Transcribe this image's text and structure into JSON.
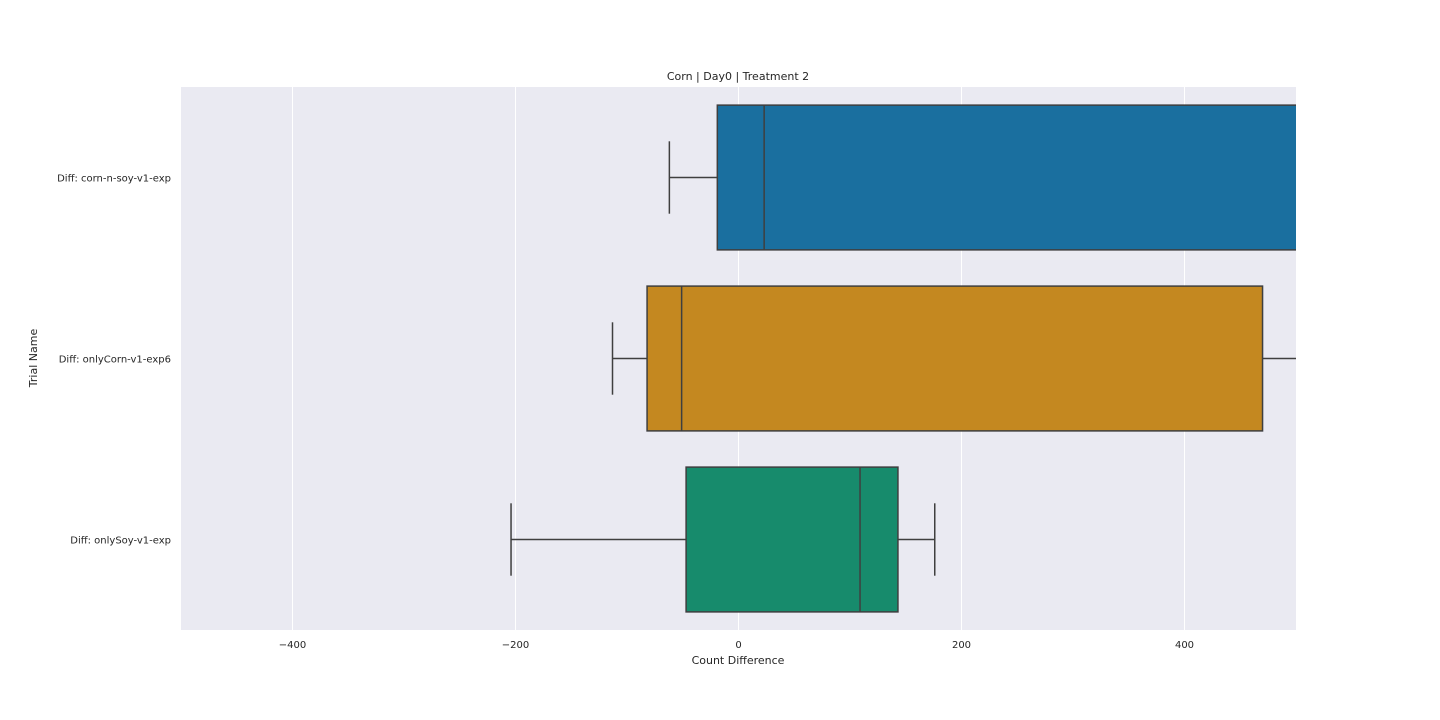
{
  "chart_data": {
    "type": "boxplot",
    "orientation": "horizontal",
    "title": "Corn | Day0 | Treatment 2",
    "xlabel": "Count Difference",
    "ylabel": "Trial Name",
    "xlim": [
      -500,
      500
    ],
    "xticks": [
      -400,
      -200,
      0,
      200,
      400
    ],
    "xtick_labels": [
      "−400",
      "−200",
      "0",
      "200",
      "400"
    ],
    "grid": true,
    "legend": "none",
    "background": "#eaeaf2",
    "series": [
      {
        "category": "Diff: corn-n-soy-v1-exp",
        "color": "#1a6f9f",
        "whisker_low": -62,
        "q1": -19,
        "median": 23,
        "q3": 525,
        "whisker_high": 525
      },
      {
        "category": "Diff: onlyCorn-v1-exp6",
        "color": "#c48820",
        "whisker_low": -113,
        "q1": -82,
        "median": -51,
        "q3": 470,
        "whisker_high": 525
      },
      {
        "category": "Diff: onlySoy-v1-exp",
        "color": "#178b6c",
        "whisker_low": -204,
        "q1": -47,
        "median": 109,
        "q3": 143,
        "whisker_high": 176
      }
    ]
  }
}
